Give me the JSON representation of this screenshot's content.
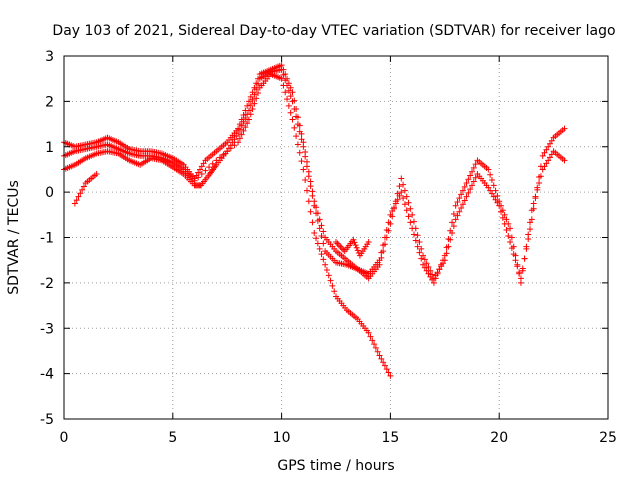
{
  "chart_data": {
    "type": "scatter",
    "title": "Day 103 of 2021, Sidereal Day-to-day VTEC variation (SDTVAR) for receiver lago",
    "xlabel": "GPS time / hours",
    "ylabel": "SDTVAR / TECUs",
    "xlim": [
      0,
      25
    ],
    "ylim": [
      -5,
      3
    ],
    "xticks": [
      0,
      5,
      10,
      15,
      20,
      25
    ],
    "yticks": [
      -5,
      -4,
      -3,
      -2,
      -1,
      0,
      1,
      2,
      3
    ],
    "xtick_labels": [
      "0",
      "5",
      "10",
      "15",
      "20",
      "25"
    ],
    "ytick_labels": [
      "-5",
      "-4",
      "-3",
      "-2",
      "-1",
      "0",
      "1",
      "2",
      "3"
    ],
    "grid": true,
    "marker": "+",
    "color": "#ff0000",
    "series": [
      {
        "name": "track-1",
        "x": [
          0.0,
          0.5,
          1.0,
          1.5,
          2.0,
          2.5,
          3.0,
          3.5,
          4.0,
          4.5,
          5.0,
          5.5,
          6.0,
          6.3,
          6.7,
          7.0,
          7.5,
          8.0,
          8.5,
          9.0,
          9.5,
          10.0,
          10.5,
          11.0,
          11.5,
          12.0,
          12.5,
          13.0,
          13.5,
          14.0,
          14.5,
          15.0,
          15.5,
          16.0,
          16.5,
          17.0,
          17.5,
          18.0,
          18.5,
          19.0,
          19.5,
          20.0,
          20.5,
          21.0,
          21.5,
          22.0,
          22.5,
          23.0
        ],
        "y": [
          0.5,
          0.6,
          0.75,
          0.85,
          0.9,
          0.85,
          0.7,
          0.6,
          0.75,
          0.7,
          0.55,
          0.4,
          0.15,
          0.15,
          0.4,
          0.6,
          0.9,
          1.3,
          1.8,
          2.5,
          2.65,
          2.7,
          2.0,
          1.0,
          -0.3,
          -1.3,
          -1.55,
          -1.6,
          -1.7,
          -1.9,
          -1.6,
          -0.7,
          0.3,
          -0.5,
          -1.4,
          -1.9,
          -1.5,
          -0.6,
          -0.1,
          0.4,
          0.1,
          -0.3,
          -1.1,
          -1.9,
          -0.6,
          0.8,
          1.2,
          1.4
        ]
      },
      {
        "name": "track-2",
        "x": [
          0.0,
          0.5,
          1.0,
          1.5,
          2.0,
          2.5,
          3.0,
          3.5,
          4.0,
          4.5,
          5.0,
          5.5,
          6.0,
          6.5,
          7.0,
          7.5,
          8.0,
          8.5,
          9.0,
          9.5,
          10.0,
          10.5,
          11.0,
          11.5,
          12.0,
          12.5,
          13.0,
          13.5,
          14.0,
          14.5,
          15.0,
          15.5,
          16.0,
          16.5,
          17.0,
          17.5,
          18.0,
          18.5,
          19.0,
          19.5,
          20.0,
          20.5,
          21.0,
          21.5,
          22.0,
          22.5,
          23.0
        ],
        "y": [
          1.1,
          1.0,
          1.05,
          1.1,
          1.2,
          1.1,
          0.95,
          0.9,
          0.9,
          0.85,
          0.75,
          0.6,
          0.3,
          0.7,
          0.9,
          1.1,
          1.4,
          2.0,
          2.6,
          2.7,
          2.8,
          2.2,
          1.1,
          -0.2,
          -1.0,
          -1.3,
          -1.5,
          -1.7,
          -1.8,
          -1.5,
          -0.5,
          0.0,
          -0.8,
          -1.6,
          -2.0,
          -1.4,
          -0.3,
          0.2,
          0.7,
          0.5,
          -0.2,
          -0.8,
          -2.0,
          -0.4,
          0.5,
          0.9,
          0.7
        ]
      },
      {
        "name": "track-3",
        "x": [
          0.0,
          0.5,
          1.0,
          1.5,
          2.0,
          2.5,
          3.0,
          3.5,
          4.0,
          4.5,
          5.0,
          5.5,
          6.0,
          7.0,
          8.0,
          8.5,
          9.0,
          9.5,
          10.0,
          10.5,
          11.0,
          11.5,
          12.0,
          12.5,
          13.0,
          13.5,
          14.0,
          14.5,
          15.0
        ],
        "y": [
          0.8,
          0.9,
          0.95,
          1.0,
          1.05,
          0.95,
          0.85,
          0.8,
          0.8,
          0.75,
          0.65,
          0.5,
          0.25,
          0.7,
          1.1,
          1.6,
          2.3,
          2.6,
          2.5,
          1.6,
          0.5,
          -0.9,
          -1.6,
          -2.3,
          -2.6,
          -2.8,
          -3.1,
          -3.6,
          -4.05
        ]
      },
      {
        "name": "track-4",
        "x": [
          12.5,
          12.9,
          13.3,
          13.6,
          14.0
        ],
        "y": [
          -1.1,
          -1.3,
          -1.05,
          -1.4,
          -1.1
        ]
      },
      {
        "name": "track-5",
        "x": [
          0.5,
          1.0,
          1.5
        ],
        "y": [
          -0.25,
          0.2,
          0.4
        ]
      }
    ]
  }
}
